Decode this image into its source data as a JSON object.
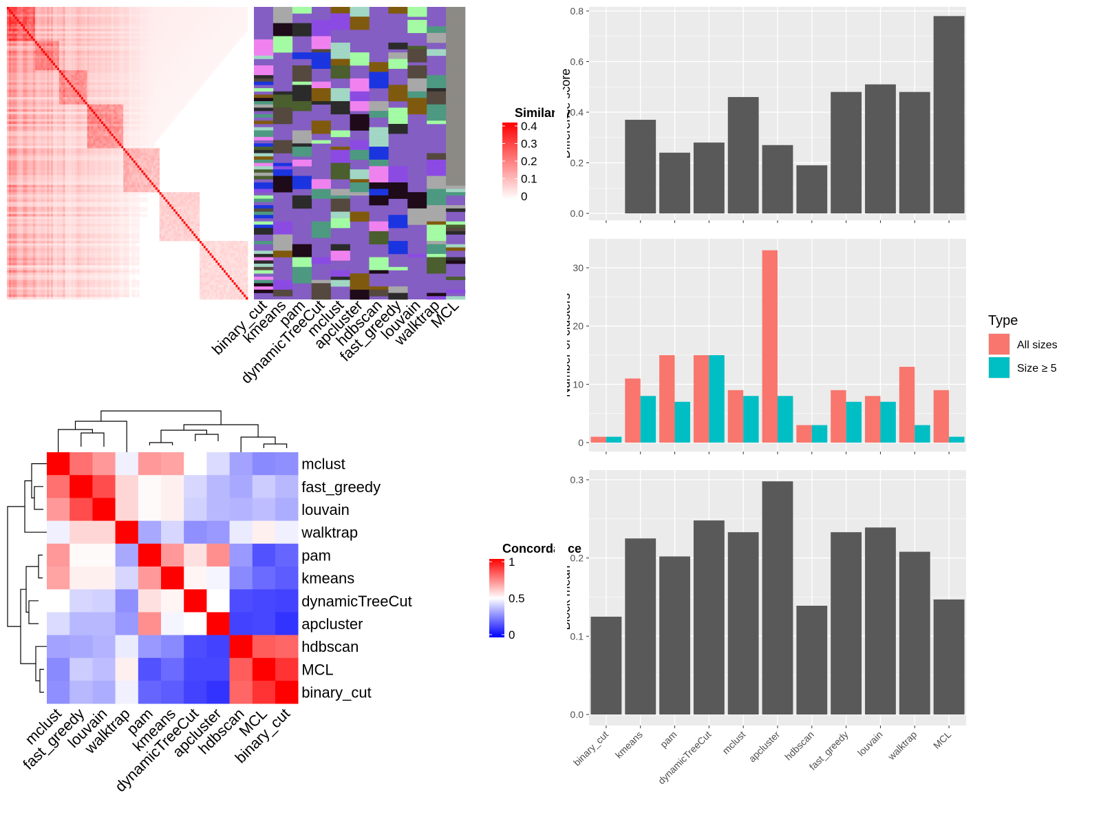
{
  "colors": {
    "bar_fill": "#595959",
    "panel_bg": "#ebebeb",
    "grid": "#ffffff",
    "all_sizes": "#f8766d",
    "size_ge_5": "#00bfc4",
    "sim_high": "#ff0000",
    "sim_low": "#ffffff",
    "concord_high": "#ff0000",
    "concord_mid": "#ffffff",
    "concord_low": "#0000ff",
    "cluster_palette": [
      "#845EC2",
      "#7F5A0E",
      "#4A5E2E",
      "#4D9981",
      "#A8A8A8",
      "#1E0A19",
      "#1A35E0",
      "#A3FBA3",
      "#8B4BE3",
      "#F082F0",
      "#A1D7C4",
      "#55483E",
      "#2B2B2B"
    ]
  },
  "chart_data": [
    {
      "type": "heatmap",
      "id": "similarity-heatmap",
      "legend": {
        "title": "Similarity",
        "ticks": [
          "0.4",
          "0.3",
          "0.2",
          "0.1",
          "0"
        ],
        "range": [
          0,
          0.4
        ]
      },
      "matrix_size": 120,
      "annotation_columns": [
        "binary_cut",
        "kmeans",
        "pam",
        "dynamicTreeCut",
        "mclust",
        "apcluster",
        "hdbscan",
        "fast_greedy",
        "louvain",
        "walktrap",
        "MCL"
      ]
    },
    {
      "type": "heatmap",
      "id": "concordance-heatmap",
      "legend": {
        "title": "Concordance",
        "ticks": [
          "1",
          "0.5",
          "0"
        ],
        "range": [
          0,
          1
        ]
      },
      "row_labels": [
        "mclust",
        "fast_greedy",
        "louvain",
        "walktrap",
        "pam",
        "kmeans",
        "dynamicTreeCut",
        "apcluster",
        "hdbscan",
        "MCL",
        "binary_cut"
      ],
      "col_labels": [
        "mclust",
        "fast_greedy",
        "louvain",
        "walktrap",
        "pam",
        "kmeans",
        "dynamicTreeCut",
        "apcluster",
        "hdbscan",
        "MCL",
        "binary_cut"
      ],
      "values": [
        [
          1.0,
          0.78,
          0.7,
          0.47,
          0.7,
          0.68,
          0.5,
          0.43,
          0.32,
          0.27,
          0.28
        ],
        [
          0.78,
          1.0,
          0.85,
          0.58,
          0.51,
          0.53,
          0.42,
          0.36,
          0.33,
          0.4,
          0.36
        ],
        [
          0.7,
          0.85,
          1.0,
          0.58,
          0.51,
          0.53,
          0.41,
          0.36,
          0.35,
          0.37,
          0.34
        ],
        [
          0.47,
          0.58,
          0.58,
          1.0,
          0.33,
          0.42,
          0.28,
          0.3,
          0.46,
          0.53,
          0.47
        ],
        [
          0.7,
          0.51,
          0.51,
          0.33,
          1.0,
          0.7,
          0.56,
          0.72,
          0.3,
          0.16,
          0.2
        ],
        [
          0.68,
          0.53,
          0.53,
          0.42,
          0.7,
          1.0,
          0.52,
          0.48,
          0.27,
          0.21,
          0.18
        ],
        [
          0.5,
          0.42,
          0.41,
          0.28,
          0.56,
          0.52,
          1.0,
          0.5,
          0.15,
          0.14,
          0.13
        ],
        [
          0.43,
          0.36,
          0.36,
          0.3,
          0.72,
          0.48,
          0.5,
          1.0,
          0.13,
          0.14,
          0.1
        ],
        [
          0.32,
          0.33,
          0.35,
          0.46,
          0.3,
          0.27,
          0.15,
          0.13,
          1.0,
          0.82,
          0.8
        ],
        [
          0.27,
          0.4,
          0.37,
          0.53,
          0.16,
          0.21,
          0.14,
          0.14,
          0.82,
          1.0,
          0.9
        ],
        [
          0.28,
          0.36,
          0.34,
          0.47,
          0.2,
          0.18,
          0.13,
          0.1,
          0.8,
          0.9,
          1.0
        ]
      ]
    },
    {
      "type": "bar",
      "id": "difference-score",
      "categories": [
        "binary_cut",
        "kmeans",
        "pam",
        "dynamicTreeCut",
        "mclust",
        "apcluster",
        "hdbscan",
        "fast_greedy",
        "louvain",
        "walktrap",
        "MCL"
      ],
      "values": [
        0.0,
        0.37,
        0.24,
        0.28,
        0.46,
        0.27,
        0.19,
        0.48,
        0.51,
        0.48,
        0.78
      ],
      "ylabel": "Difference score",
      "ylim": [
        0,
        0.8
      ],
      "yticks": [
        "0.0",
        "0.2",
        "0.4",
        "0.6",
        "0.8"
      ],
      "grid": true
    },
    {
      "type": "bar",
      "id": "number-of-clusters",
      "categories": [
        "binary_cut",
        "kmeans",
        "pam",
        "dynamicTreeCut",
        "mclust",
        "apcluster",
        "hdbscan",
        "fast_greedy",
        "louvain",
        "walktrap",
        "MCL"
      ],
      "series": [
        {
          "name": "All sizes",
          "values": [
            1,
            11,
            15,
            15,
            9,
            33,
            3,
            9,
            8,
            13,
            9
          ]
        },
        {
          "name": "Size ≥ 5",
          "values": [
            1,
            8,
            7,
            15,
            8,
            8,
            3,
            7,
            7,
            3,
            1
          ]
        }
      ],
      "ylabel": "Number of clusters",
      "ylim": [
        0,
        35
      ],
      "yticks": [
        "0",
        "10",
        "20",
        "30"
      ],
      "legend": {
        "title": "Type",
        "placement": "right"
      },
      "grid": true
    },
    {
      "type": "bar",
      "id": "block-mean",
      "categories": [
        "binary_cut",
        "kmeans",
        "pam",
        "dynamicTreeCut",
        "mclust",
        "apcluster",
        "hdbscan",
        "fast_greedy",
        "louvain",
        "walktrap",
        "MCL"
      ],
      "values": [
        0.125,
        0.225,
        0.202,
        0.248,
        0.233,
        0.298,
        0.139,
        0.233,
        0.239,
        0.208,
        0.147
      ],
      "ylabel": "Block mean",
      "ylim": [
        0,
        0.31
      ],
      "yticks": [
        "0.0",
        "0.1",
        "0.2",
        "0.3"
      ],
      "grid": true
    }
  ]
}
